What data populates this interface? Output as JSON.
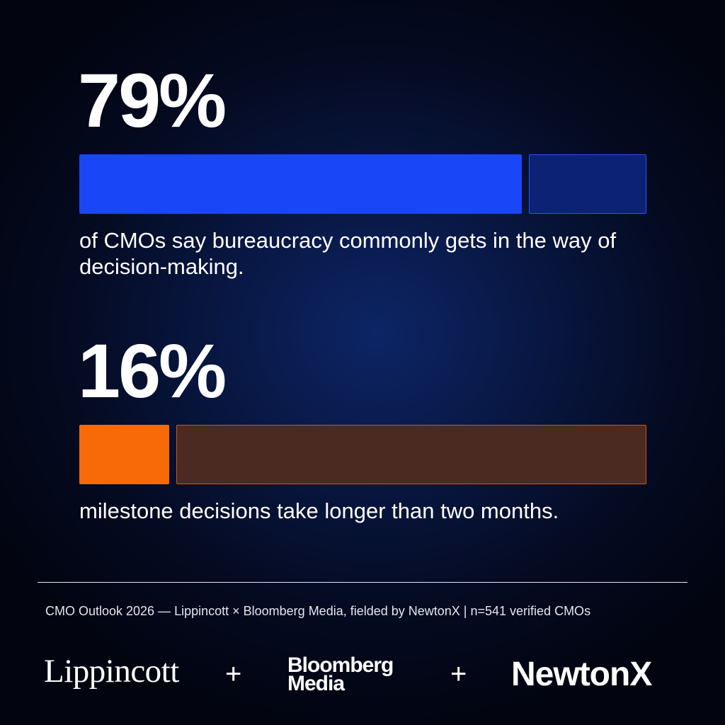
{
  "chart_data": {
    "type": "bar",
    "stats": [
      {
        "value_label": "79%",
        "value": 79,
        "caption": "of CMOs say bureaucracy commonly gets in the way of decision-making.",
        "fill_color": "#1947f8",
        "rest_color": "#0c2274",
        "rest_border": "#2b54f5"
      },
      {
        "value_label": "16%",
        "value": 16,
        "caption": "milestone decisions take longer than two months.",
        "fill_color": "#f86a08",
        "rest_color": "#4b2a22",
        "rest_border": "#c55a1c"
      }
    ]
  },
  "footer": {
    "source": "CMO Outlook 2026 — Lippincott × Bloomberg Media, fielded by NewtonX | n=541 verified CMOs",
    "logos": {
      "lippincott": "Lippincott",
      "plus": "+",
      "bloomberg_line1": "Bloomberg",
      "bloomberg_line2": "Media",
      "newtonx": "NewtonX"
    }
  }
}
